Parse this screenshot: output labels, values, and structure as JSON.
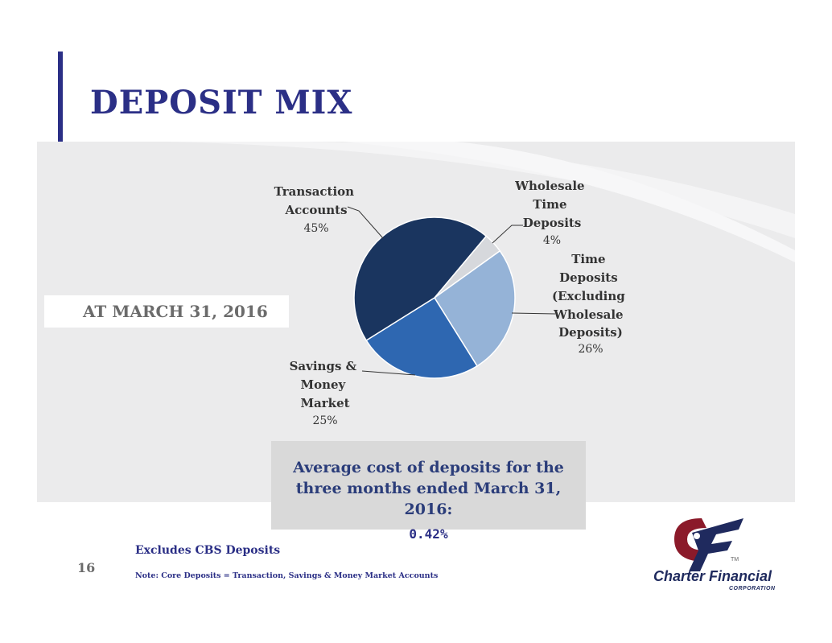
{
  "slide": {
    "title": "DEPOSIT MIX",
    "date_label": "AT MARCH 31, 2016",
    "page_number": "16",
    "footnote_main": "Excludes CBS Deposits",
    "footnote_note": "Note:  Core Deposits = Transaction, Savings & Money Market Accounts"
  },
  "callout": {
    "text": "Average cost of deposits for the three months ended March 31, 2016:",
    "value": "0.42%"
  },
  "logo": {
    "name": "Charter Financial",
    "sub": "CORPORATION",
    "tm": "TM"
  },
  "chart_data": {
    "type": "pie",
    "title": "",
    "slices": [
      {
        "label": "Transaction Accounts",
        "value": 45,
        "pct_label": "45%",
        "color": "#1a355f"
      },
      {
        "label": "Wholesale Time Deposits",
        "value": 4,
        "pct_label": "4%",
        "color": "#d6d8dc"
      },
      {
        "label": "Time Deposits (Excluding Wholesale Deposits)",
        "value": 26,
        "pct_label": "26%",
        "color": "#95b3d7"
      },
      {
        "label": "Savings & Money Market",
        "value": 25,
        "pct_label": "25%",
        "color": "#2e67b1"
      }
    ]
  }
}
